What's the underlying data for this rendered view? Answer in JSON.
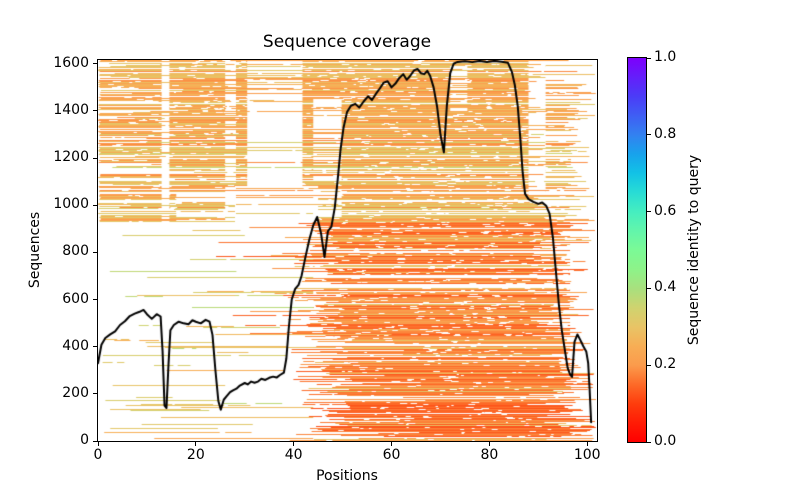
{
  "title": "Sequence coverage",
  "xlabel": "Positions",
  "ylabel": "Sequences",
  "colorbar": {
    "label": "Sequence identity to query",
    "tick_values": [
      0.0,
      0.2,
      0.4,
      0.6,
      0.8,
      1.0
    ],
    "tick_labels": [
      "0.0",
      "0.2",
      "0.4",
      "0.6",
      "0.8",
      "1.0"
    ]
  },
  "axes": {
    "xlim": [
      0,
      102
    ],
    "ylim": [
      0,
      1616
    ],
    "x_tick_values": [
      0,
      20,
      40,
      60,
      80,
      100
    ],
    "x_tick_labels": [
      "0",
      "20",
      "40",
      "60",
      "80",
      "100"
    ],
    "y_tick_values": [
      0,
      200,
      400,
      600,
      800,
      1000,
      1200,
      1400,
      1600
    ],
    "y_tick_labels": [
      "0",
      "200",
      "400",
      "600",
      "800",
      "1000",
      "1200",
      "1400",
      "1600"
    ]
  },
  "colors": {
    "background": "#ffffff",
    "coverage_line": "#000000",
    "axis": "#000000"
  },
  "chart_data": {
    "type": "heatmap+line",
    "description": "MSA sequence coverage: ~1616 aligned sequences (rows) over ~102 positions (columns), colored by sequence identity to query via rainbow_r colormap; black line = per-position count of covering sequences.",
    "seed": 42,
    "colormap_anchors": [
      [
        0.0,
        "#ff0000"
      ],
      [
        0.05,
        "#ff1c05"
      ],
      [
        0.1,
        "#fe3d0d"
      ],
      [
        0.15,
        "#fd6a28"
      ],
      [
        0.2,
        "#fb9b4c"
      ],
      [
        0.25,
        "#f7ae55"
      ],
      [
        0.3,
        "#e8c466"
      ],
      [
        0.35,
        "#cfd36f"
      ],
      [
        0.4,
        "#a8e07e"
      ],
      [
        0.45,
        "#8df389"
      ],
      [
        0.5,
        "#7bfa96"
      ],
      [
        0.55,
        "#62f5ab"
      ],
      [
        0.6,
        "#45eec0"
      ],
      [
        0.65,
        "#28dcd5"
      ],
      [
        0.7,
        "#12c2e6"
      ],
      [
        0.75,
        "#18a2ec"
      ],
      [
        0.8,
        "#3381f0"
      ],
      [
        0.85,
        "#3f5ef4"
      ],
      [
        0.9,
        "#4b3cf7"
      ],
      [
        0.95,
        "#641ffa"
      ],
      [
        1.0,
        "#7d00fc"
      ]
    ],
    "msa_bands": [
      {
        "name": "bottom-dense-right",
        "rows": [
          0,
          430
        ],
        "fill": 0.92,
        "x_start": {
          "main": [
            39,
            52
          ],
          "alt": [
            52,
            68
          ],
          "altp": 0.2
        },
        "x_end": {
          "main": [
            94,
            101.8
          ],
          "alt": [
            86,
            94
          ],
          "altp": 0.15
        },
        "identity": [
          0.12,
          0.21
        ],
        "light_p": 0.08,
        "light_identity": [
          0.26,
          0.33
        ],
        "nicks": [
          1,
          4
        ]
      },
      {
        "name": "mid-right",
        "rows": [
          430,
          930
        ],
        "fill": 0.86,
        "x_start": {
          "main": [
            40,
            50
          ],
          "alt": [
            24,
            40
          ],
          "altp": 0.13
        },
        "x_end": {
          "main": [
            88,
            97
          ],
          "alt": [
            97,
            101.8
          ],
          "altp": 0.35
        },
        "identity": [
          0.13,
          0.23
        ],
        "light_p": 0.1,
        "light_identity": [
          0.26,
          0.33
        ],
        "nicks": [
          2,
          6
        ]
      },
      {
        "name": "top-full-width",
        "rows": [
          930,
          1616
        ],
        "fill": 0.84,
        "x_start": {
          "main": [
            0,
            0.6
          ],
          "alt": [
            2,
            20
          ],
          "altp": 0.35
        },
        "x_end": {
          "main": [
            95,
            101.8
          ],
          "alt": [
            88,
            91.5
          ],
          "altp": 0.5
        },
        "identity": [
          0.18,
          0.32
        ],
        "light_p": 0.06,
        "light_identity": [
          0.3,
          0.36
        ],
        "nicks": [
          4,
          9
        ]
      },
      {
        "name": "left-sparse",
        "rows": [
          0,
          930
        ],
        "fill": 0.17,
        "x_start": {
          "main": [
            0,
            26
          ]
        },
        "x_end": {
          "relative": true,
          "main": [
            4,
            38
          ],
          "max": 44
        },
        "identity": [
          0.24,
          0.38
        ],
        "light_p": 0,
        "light_identity": [
          0.3,
          0.36
        ],
        "nicks": [
          0,
          1
        ]
      }
    ],
    "gap_columns": [
      {
        "x": [
          13,
          14.6
        ],
        "rows": [
          930,
          1616
        ],
        "keep": 0.25
      },
      {
        "x": [
          26,
          28.2
        ],
        "rows": [
          930,
          1616
        ],
        "keep": 0.4
      },
      {
        "x": [
          16,
          28
        ],
        "rows": [
          930,
          1060
        ],
        "keep": 0.55
      },
      {
        "x": [
          28,
          45
        ],
        "rows": [
          930,
          1080
        ],
        "keep": 0.18
      },
      {
        "x": [
          30.5,
          41.8
        ],
        "rows": [
          1080,
          1475
        ],
        "keep": 0.12
      },
      {
        "x": [
          30.5,
          41.8
        ],
        "rows": [
          1475,
          1616
        ],
        "keep": 0.55
      },
      {
        "x": [
          44,
          49.8
        ],
        "rows": [
          950,
          1450
        ],
        "keep": 0.38
      },
      {
        "x": [
          72,
          75.5
        ],
        "rows": [
          1400,
          1590
        ],
        "keep": 0.4
      },
      {
        "x": [
          88,
          91.5
        ],
        "rows": [
          1045,
          1616
        ],
        "keep": 0.25
      },
      {
        "x": [
          96.5,
          101.8
        ],
        "rows": [
          430,
          930
        ],
        "keep": 0.5
      }
    ],
    "extra_segments": [
      {
        "r": 57,
        "x": [
          2.5,
          24.5
        ],
        "t": 0.31
      },
      {
        "r": 13,
        "x": [
          11.5,
          44
        ],
        "t": 0.22
      },
      {
        "r": 238,
        "x": [
          3,
          26
        ],
        "t": 0.3
      },
      {
        "r": 300,
        "x": [
          14,
          38
        ],
        "t": 0.25
      },
      {
        "r": 455,
        "x": [
          24,
          60
        ],
        "t": 0.27
      },
      {
        "r": 620,
        "x": [
          8,
          28
        ],
        "t": 0.29
      },
      {
        "r": 875,
        "x": [
          5,
          30
        ],
        "t": 0.33
      },
      {
        "r": 1445,
        "x": [
          31,
          36
        ],
        "t": 0.28
      }
    ],
    "coverage_line": [
      [
        0,
        330
      ],
      [
        0.7,
        408
      ],
      [
        1.5,
        437
      ],
      [
        2.5,
        452
      ],
      [
        3.5,
        465
      ],
      [
        4.5,
        492
      ],
      [
        5.5,
        508
      ],
      [
        6.5,
        530
      ],
      [
        7.5,
        540
      ],
      [
        8.5,
        548
      ],
      [
        9.3,
        556
      ],
      [
        10,
        538
      ],
      [
        11,
        518
      ],
      [
        12,
        538
      ],
      [
        12.8,
        528
      ],
      [
        13.2,
        380
      ],
      [
        13.6,
        150
      ],
      [
        14,
        140
      ],
      [
        14.4,
        320
      ],
      [
        14.8,
        470
      ],
      [
        15.5,
        492
      ],
      [
        16.5,
        506
      ],
      [
        17.5,
        499
      ],
      [
        18.5,
        495
      ],
      [
        19.3,
        512
      ],
      [
        20,
        506
      ],
      [
        21,
        499
      ],
      [
        22,
        514
      ],
      [
        22.8,
        506
      ],
      [
        23.4,
        450
      ],
      [
        24,
        300
      ],
      [
        24.6,
        170
      ],
      [
        25.1,
        133
      ],
      [
        25.7,
        175
      ],
      [
        26.3,
        190
      ],
      [
        27,
        207
      ],
      [
        27.6,
        215
      ],
      [
        28.3,
        222
      ],
      [
        29,
        235
      ],
      [
        30,
        246
      ],
      [
        30.6,
        240
      ],
      [
        31.3,
        252
      ],
      [
        32,
        247
      ],
      [
        32.7,
        252
      ],
      [
        33.4,
        264
      ],
      [
        34.2,
        259
      ],
      [
        35,
        268
      ],
      [
        35.8,
        273
      ],
      [
        36.5,
        269
      ],
      [
        37.2,
        280
      ],
      [
        38,
        290
      ],
      [
        38.5,
        350
      ],
      [
        39,
        480
      ],
      [
        39.6,
        600
      ],
      [
        40.3,
        645
      ],
      [
        41,
        662
      ],
      [
        41.6,
        700
      ],
      [
        42.4,
        780
      ],
      [
        43.2,
        855
      ],
      [
        44,
        915
      ],
      [
        44.8,
        950
      ],
      [
        45.6,
        880
      ],
      [
        46.3,
        780
      ],
      [
        47,
        890
      ],
      [
        47.7,
        908
      ],
      [
        48.4,
        990
      ],
      [
        49,
        1110
      ],
      [
        49.6,
        1240
      ],
      [
        50.2,
        1330
      ],
      [
        50.9,
        1395
      ],
      [
        51.7,
        1422
      ],
      [
        52.6,
        1430
      ],
      [
        53.4,
        1414
      ],
      [
        54.3,
        1440
      ],
      [
        55.2,
        1462
      ],
      [
        56,
        1446
      ],
      [
        56.8,
        1472
      ],
      [
        57.6,
        1495
      ],
      [
        58.4,
        1520
      ],
      [
        59.2,
        1526
      ],
      [
        60,
        1500
      ],
      [
        60.8,
        1516
      ],
      [
        61.6,
        1540
      ],
      [
        62.4,
        1556
      ],
      [
        63.1,
        1532
      ],
      [
        63.8,
        1548
      ],
      [
        64.6,
        1572
      ],
      [
        65.3,
        1578
      ],
      [
        66,
        1560
      ],
      [
        66.7,
        1556
      ],
      [
        67.3,
        1570
      ],
      [
        67.9,
        1548
      ],
      [
        68.6,
        1500
      ],
      [
        69.3,
        1420
      ],
      [
        70,
        1300
      ],
      [
        70.7,
        1224
      ],
      [
        71.3,
        1420
      ],
      [
        72,
        1560
      ],
      [
        72.7,
        1600
      ],
      [
        73.5,
        1608
      ],
      [
        75,
        1611
      ],
      [
        76.5,
        1607
      ],
      [
        78,
        1612
      ],
      [
        79.5,
        1608
      ],
      [
        81,
        1612
      ],
      [
        82.5,
        1609
      ],
      [
        83.8,
        1604
      ],
      [
        84.6,
        1566
      ],
      [
        85.2,
        1510
      ],
      [
        85.8,
        1420
      ],
      [
        86.3,
        1290
      ],
      [
        86.8,
        1140
      ],
      [
        87.3,
        1048
      ],
      [
        88,
        1026
      ],
      [
        89,
        1014
      ],
      [
        90,
        1006
      ],
      [
        90.8,
        1012
      ],
      [
        91.6,
        998
      ],
      [
        92.3,
        964
      ],
      [
        93,
        860
      ],
      [
        93.6,
        720
      ],
      [
        94.2,
        580
      ],
      [
        94.8,
        470
      ],
      [
        95.4,
        390
      ],
      [
        96,
        310
      ],
      [
        96.5,
        282
      ],
      [
        96.9,
        272
      ],
      [
        97.4,
        420
      ],
      [
        98,
        452
      ],
      [
        98.6,
        428
      ],
      [
        99.2,
        402
      ],
      [
        99.8,
        380
      ],
      [
        100.2,
        330
      ],
      [
        100.5,
        215
      ],
      [
        100.8,
        80
      ]
    ]
  }
}
